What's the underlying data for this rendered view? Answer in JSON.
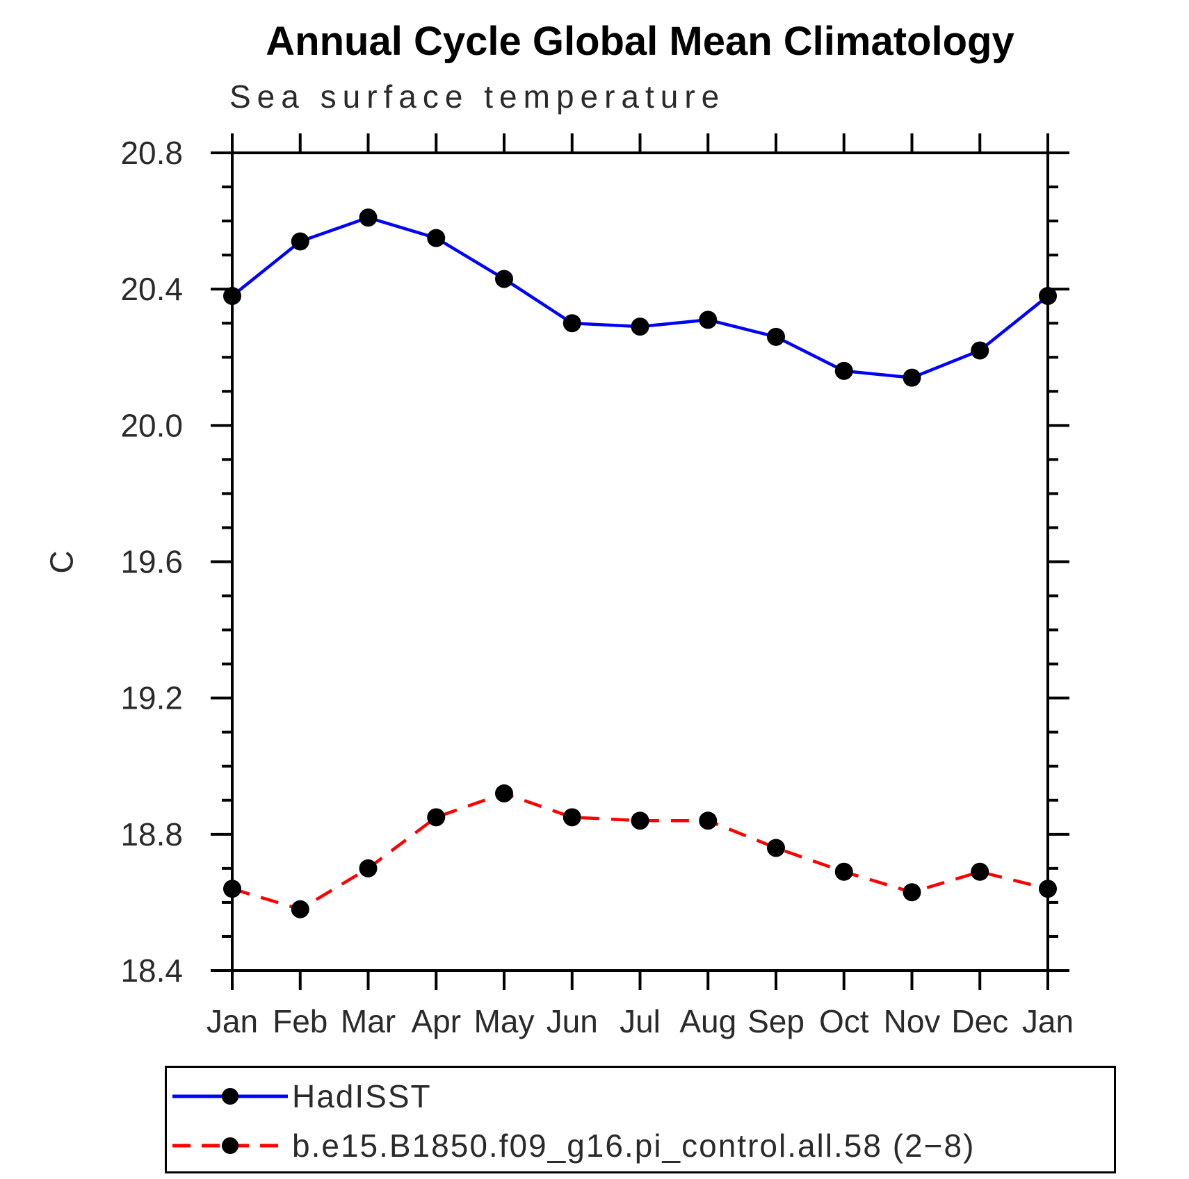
{
  "title": "Annual Cycle Global Mean Climatology",
  "subtitle": "Sea surface temperature",
  "ylabel": "C",
  "legend": {
    "position": "bottom",
    "items": [
      {
        "label": "HadISST",
        "color": "#0000ff",
        "style": "solid",
        "marker_color": "#000000"
      },
      {
        "label": "b.e15.B1850.f09_g16.pi_control.all.58 (2−8)",
        "color": "#ff0000",
        "style": "dashed",
        "marker_color": "#000000"
      }
    ]
  },
  "chart_data": {
    "type": "line",
    "title": "Annual Cycle Global Mean Climatology",
    "subtitle": "Sea surface temperature",
    "xlabel": "",
    "ylabel": "C",
    "categories": [
      "Jan",
      "Feb",
      "Mar",
      "Apr",
      "May",
      "Jun",
      "Jul",
      "Aug",
      "Sep",
      "Oct",
      "Nov",
      "Dec",
      "Jan"
    ],
    "ylim": [
      18.4,
      20.8
    ],
    "y_major_ticks": [
      20.8,
      20.4,
      20.0,
      19.6,
      19.2,
      18.8,
      18.4
    ],
    "y_minor_step": 0.1,
    "grid": false,
    "legend_position": "bottom",
    "series": [
      {
        "name": "HadISST",
        "color": "#0000ff",
        "line_style": "solid",
        "marker": "circle",
        "marker_color": "#000000",
        "values": [
          20.38,
          20.54,
          20.61,
          20.55,
          20.43,
          20.3,
          20.29,
          20.31,
          20.26,
          20.16,
          20.14,
          20.22,
          20.38
        ]
      },
      {
        "name": "b.e15.B1850.f09_g16.pi_control.all.58 (2−8)",
        "color": "#ff0000",
        "line_style": "dashed",
        "marker": "circle",
        "marker_color": "#000000",
        "values": [
          18.64,
          18.58,
          18.7,
          18.85,
          18.92,
          18.85,
          18.84,
          18.84,
          18.76,
          18.69,
          18.63,
          18.69,
          18.64
        ]
      }
    ]
  }
}
